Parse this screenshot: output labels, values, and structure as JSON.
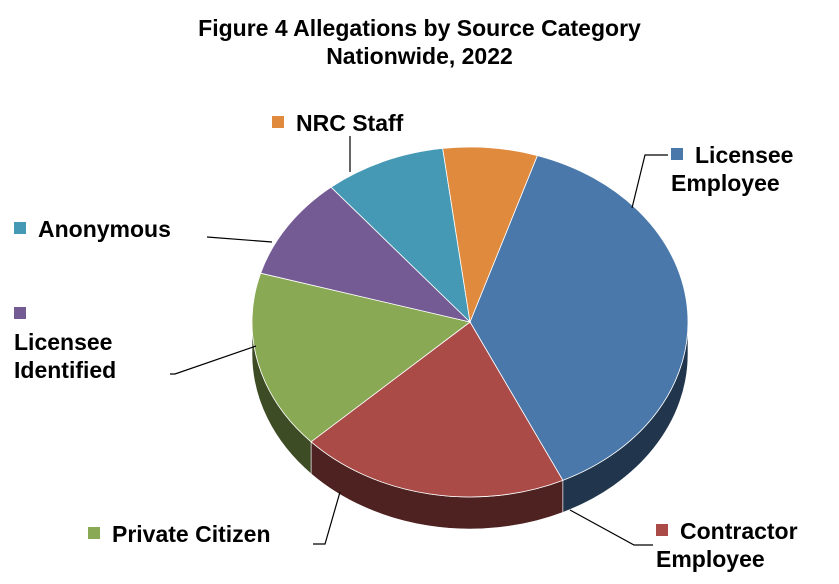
{
  "chart_data": {
    "type": "pie",
    "title": "Figure 4  Allegations by Source Category",
    "subtitle": "Nationwide, 2022",
    "slices": [
      {
        "label": "Licensee Employee",
        "value": 38.0,
        "color": "#4a78ab"
      },
      {
        "label": "Contractor Employee",
        "value": 20.0,
        "color": "#aa4b48"
      },
      {
        "label": "Private Citizen",
        "value": 16.5,
        "color": "#8aa954"
      },
      {
        "label": "Licensee Identified",
        "value": 9.5,
        "color": "#745b94"
      },
      {
        "label": "Anonymous",
        "value": 9.0,
        "color": "#4599b5"
      },
      {
        "label": "NRC Staff",
        "value": 7.0,
        "color": "#e08a3e"
      }
    ],
    "legend": "callout-labels"
  }
}
